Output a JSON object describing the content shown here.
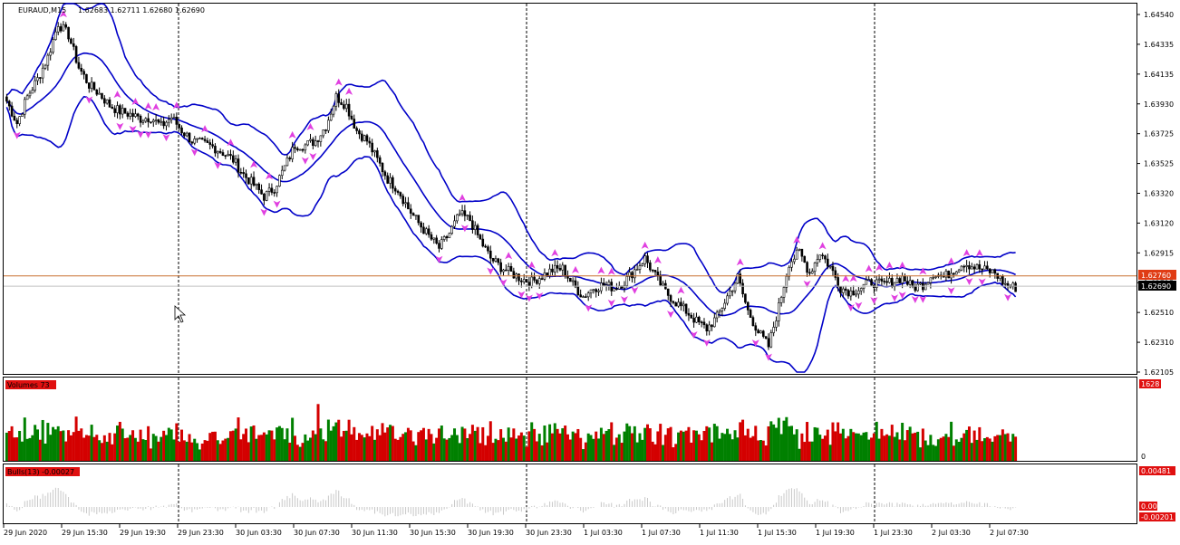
{
  "header": {
    "symbol": "EURAUD,M15",
    "ohlc": "1.62683 1.62711 1.62680 1.62690"
  },
  "colors": {
    "background": "#ffffff",
    "candle": "#000000",
    "bollinger": "#0000c8",
    "fractal": "#e040e0",
    "volume_up": "#008000",
    "volume_down": "#d40000",
    "bulls": "#c8c8c8",
    "bid_line": "#c0c0c0",
    "ask_line": "#c87030",
    "ask_tag": "#e03c14",
    "separator": "#000000"
  },
  "price_axis": {
    "ticks": [
      "1.64540",
      "1.64335",
      "1.64135",
      "1.63930",
      "1.63725",
      "1.63525",
      "1.63320",
      "1.63120",
      "1.62915",
      "1.62715",
      "1.62510",
      "1.62310",
      "1.62105"
    ],
    "ask_tag": "1.62760",
    "bid_tag": "1.62690"
  },
  "time_axis": {
    "labels": [
      "29 Jun 2020",
      "29 Jun 15:30",
      "29 Jun 19:30",
      "29 Jun 23:30",
      "30 Jun 03:30",
      "30 Jun 07:30",
      "30 Jun 11:30",
      "30 Jun 15:30",
      "30 Jun 19:30",
      "30 Jun 23:30",
      "1 Jul 03:30",
      "1 Jul 07:30",
      "1 Jul 11:30",
      "1 Jul 15:30",
      "1 Jul 19:30",
      "1 Jul 23:30",
      "2 Jul 03:30",
      "2 Jul 07:30"
    ]
  },
  "volumes_panel": {
    "label": "Volumes 73",
    "top_tag": "1628",
    "bottom_tag": "0"
  },
  "bulls_panel": {
    "label": "Bulls(13) -0.00027",
    "top_tag": "0.00481",
    "mid_tag": "0.00",
    "bottom_tag": "-0.00201"
  },
  "chart_data": {
    "type": "candlestick",
    "timeframe": "M15",
    "symbol": "EURAUD",
    "ylim": [
      1.62105,
      1.6454
    ],
    "close_path": [
      [
        0,
        1.6395
      ],
      [
        4,
        1.638
      ],
      [
        8,
        1.6398
      ],
      [
        12,
        1.641
      ],
      [
        16,
        1.6425
      ],
      [
        20,
        1.6448
      ],
      [
        24,
        1.644
      ],
      [
        28,
        1.6418
      ],
      [
        32,
        1.6406
      ],
      [
        36,
        1.64
      ],
      [
        40,
        1.6392
      ],
      [
        44,
        1.6388
      ],
      [
        48,
        1.6386
      ],
      [
        52,
        1.6383
      ],
      [
        56,
        1.6384
      ],
      [
        60,
        1.6378
      ],
      [
        64,
        1.6384
      ],
      [
        68,
        1.6375
      ],
      [
        72,
        1.6368
      ],
      [
        76,
        1.6366
      ],
      [
        80,
        1.6364
      ],
      [
        84,
        1.636
      ],
      [
        88,
        1.6355
      ],
      [
        92,
        1.6345
      ],
      [
        96,
        1.6338
      ],
      [
        100,
        1.633
      ],
      [
        104,
        1.6336
      ],
      [
        108,
        1.635
      ],
      [
        112,
        1.6365
      ],
      [
        116,
        1.6365
      ],
      [
        120,
        1.6368
      ],
      [
        124,
        1.6378
      ],
      [
        128,
        1.6398
      ],
      [
        132,
        1.6392
      ],
      [
        136,
        1.6375
      ],
      [
        140,
        1.6368
      ],
      [
        144,
        1.6355
      ],
      [
        148,
        1.6342
      ],
      [
        152,
        1.6335
      ],
      [
        156,
        1.6322
      ],
      [
        160,
        1.6312
      ],
      [
        164,
        1.6303
      ],
      [
        168,
        1.6295
      ],
      [
        172,
        1.6305
      ],
      [
        176,
        1.6318
      ],
      [
        180,
        1.6314
      ],
      [
        184,
        1.63
      ],
      [
        188,
        1.6288
      ],
      [
        192,
        1.6282
      ],
      [
        196,
        1.6278
      ],
      [
        200,
        1.6274
      ],
      [
        204,
        1.6272
      ],
      [
        208,
        1.6276
      ],
      [
        212,
        1.628
      ],
      [
        216,
        1.6281
      ],
      [
        220,
        1.627
      ],
      [
        224,
        1.6262
      ],
      [
        228,
        1.6268
      ],
      [
        232,
        1.627
      ],
      [
        236,
        1.6268
      ],
      [
        240,
        1.6272
      ],
      [
        244,
        1.628
      ],
      [
        248,
        1.6288
      ],
      [
        252,
        1.6276
      ],
      [
        256,
        1.6265
      ],
      [
        260,
        1.6258
      ],
      [
        264,
        1.6252
      ],
      [
        268,
        1.6245
      ],
      [
        272,
        1.624
      ],
      [
        276,
        1.6248
      ],
      [
        280,
        1.6262
      ],
      [
        284,
        1.6275
      ],
      [
        288,
        1.6252
      ],
      [
        292,
        1.6238
      ],
      [
        296,
        1.6228
      ],
      [
        300,
        1.6255
      ],
      [
        304,
        1.6285
      ],
      [
        308,
        1.6292
      ],
      [
        312,
        1.6278
      ],
      [
        316,
        1.6292
      ],
      [
        320,
        1.6282
      ],
      [
        324,
        1.6268
      ],
      [
        328,
        1.6265
      ],
      [
        332,
        1.6268
      ],
      [
        336,
        1.6272
      ],
      [
        340,
        1.627
      ],
      [
        344,
        1.6272
      ],
      [
        348,
        1.6275
      ],
      [
        352,
        1.6268
      ],
      [
        356,
        1.627
      ],
      [
        360,
        1.6278
      ],
      [
        364,
        1.6275
      ],
      [
        368,
        1.628
      ],
      [
        372,
        1.6285
      ],
      [
        376,
        1.6282
      ],
      [
        380,
        1.628
      ],
      [
        384,
        1.6278
      ],
      [
        388,
        1.627
      ],
      [
        392,
        1.6268
      ]
    ],
    "vertical_separators_at_label": [
      "29 Jun 23:30",
      "30 Jun 23:30",
      "1 Jul 23:30"
    ],
    "indicators": [
      "Bollinger Bands",
      "Fractals",
      "Volumes",
      "Bulls Power(13)"
    ]
  }
}
